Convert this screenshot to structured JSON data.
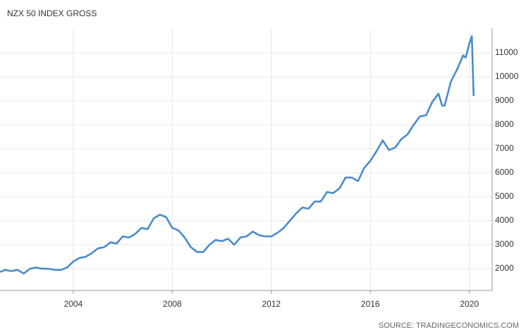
{
  "chart_data": {
    "type": "line",
    "title": "NZX 50 INDEX GROSS",
    "source": "SOURCE: TRADINGECONOMICS.COM",
    "x": [
      2001.0,
      2001.25,
      2001.5,
      2001.75,
      2002.0,
      2002.25,
      2002.5,
      2002.75,
      2003.0,
      2003.25,
      2003.5,
      2003.75,
      2004.0,
      2004.25,
      2004.5,
      2004.75,
      2005.0,
      2005.25,
      2005.5,
      2005.75,
      2006.0,
      2006.25,
      2006.5,
      2006.75,
      2007.0,
      2007.25,
      2007.5,
      2007.75,
      2008.0,
      2008.25,
      2008.5,
      2008.75,
      2009.0,
      2009.25,
      2009.5,
      2009.75,
      2010.0,
      2010.25,
      2010.5,
      2010.75,
      2011.0,
      2011.25,
      2011.5,
      2011.75,
      2012.0,
      2012.25,
      2012.5,
      2012.75,
      2013.0,
      2013.25,
      2013.5,
      2013.75,
      2014.0,
      2014.25,
      2014.5,
      2014.75,
      2015.0,
      2015.25,
      2015.5,
      2015.75,
      2016.0,
      2016.25,
      2016.5,
      2016.75,
      2017.0,
      2017.25,
      2017.5,
      2017.75,
      2018.0,
      2018.25,
      2018.5,
      2018.75,
      2018.9,
      2019.0,
      2019.25,
      2019.5,
      2019.75,
      2019.85,
      2020.0,
      2020.1,
      2020.17
    ],
    "series": [
      {
        "name": "NZX 50 INDEX GROSS",
        "color": "#4a8bc9",
        "values": [
          1850,
          1950,
          1900,
          1950,
          1800,
          2000,
          2050,
          2000,
          2000,
          1950,
          1950,
          2050,
          2300,
          2450,
          2500,
          2650,
          2850,
          2900,
          3100,
          3050,
          3350,
          3300,
          3450,
          3700,
          3650,
          4100,
          4250,
          4150,
          3700,
          3600,
          3300,
          2900,
          2700,
          2700,
          3000,
          3200,
          3150,
          3250,
          3000,
          3300,
          3350,
          3550,
          3400,
          3350,
          3350,
          3500,
          3700,
          4000,
          4300,
          4550,
          4500,
          4800,
          4800,
          5200,
          5150,
          5350,
          5800,
          5800,
          5650,
          6200,
          6500,
          6900,
          7350,
          6950,
          7050,
          7400,
          7600,
          8000,
          8350,
          8400,
          8950,
          9300,
          8800,
          8800,
          9800,
          10300,
          10900,
          10800,
          11400,
          11700,
          9200
        ]
      }
    ],
    "xlim": [
      2001.04,
      2020.92
    ],
    "ylim": [
      1090,
      12030
    ],
    "xticks": [
      2004,
      2008,
      2012,
      2016,
      2020
    ],
    "yticks": [
      2000,
      3000,
      4000,
      5000,
      6000,
      7000,
      8000,
      9000,
      10000,
      11000
    ],
    "grid": true
  }
}
